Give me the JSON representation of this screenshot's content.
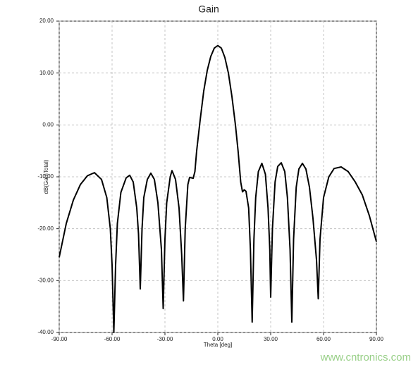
{
  "chart_data": {
    "type": "line",
    "title": "Gain",
    "x_label": "Theta [deg]",
    "y_label": "dB(GainTotal)",
    "annotation": "www.cntronics.com",
    "color": "#000000",
    "grid": true,
    "xlim": [
      -90,
      90
    ],
    "ylim": [
      -40,
      20
    ],
    "xticks": [
      {
        "value": -90,
        "label": "-90.00"
      },
      {
        "value": -60,
        "label": "-60.00"
      },
      {
        "value": -30,
        "label": "-30.00"
      },
      {
        "value": 0,
        "label": "0.00"
      },
      {
        "value": 30,
        "label": "30.00"
      },
      {
        "value": 60,
        "label": "60.00"
      },
      {
        "value": 90,
        "label": "90.00"
      }
    ],
    "yticks": [
      {
        "value": -40,
        "label": "-40.00"
      },
      {
        "value": -30,
        "label": "-30.00"
      },
      {
        "value": -20,
        "label": "-20.00"
      },
      {
        "value": -10,
        "label": "-10.00"
      },
      {
        "value": 0,
        "label": "0.00"
      },
      {
        "value": 10,
        "label": "10.00"
      },
      {
        "value": 20,
        "label": "20.00"
      }
    ],
    "x": [
      -90,
      -86,
      -82,
      -78,
      -74,
      -70,
      -66,
      -63,
      -61,
      -60,
      -59,
      -58,
      -57,
      -55,
      -52,
      -50,
      -48,
      -46,
      -45,
      -44,
      -43,
      -42,
      -40,
      -38,
      -36,
      -34,
      -32,
      -31,
      -30,
      -29,
      -27,
      -26,
      -24,
      -22,
      -20.5,
      -19.5,
      -18.5,
      -17,
      -16,
      -14,
      -13,
      -12,
      -10,
      -8,
      -6,
      -4,
      -2,
      0,
      2,
      4,
      6,
      8,
      10,
      11.5,
      13,
      14,
      15,
      16,
      17.5,
      18.5,
      19.5,
      20.5,
      21.5,
      23,
      25,
      27,
      28.5,
      29.5,
      30,
      31,
      32.5,
      34,
      36,
      38,
      39.5,
      41,
      42,
      43,
      44.5,
      46,
      48,
      50,
      52,
      54,
      56,
      57,
      58,
      60,
      63,
      66,
      70,
      74,
      78,
      82,
      86,
      90
    ],
    "values": [
      -25.5,
      -19,
      -14.5,
      -11.5,
      -9.8,
      -9.2,
      -10.5,
      -14,
      -20,
      -27,
      -40,
      -27,
      -19,
      -13,
      -10.2,
      -9.7,
      -11,
      -16,
      -21,
      -31.6,
      -20,
      -14,
      -10.5,
      -9.3,
      -10.5,
      -15,
      -24,
      -35.4,
      -22,
      -15,
      -10,
      -8.8,
      -10.5,
      -16,
      -25,
      -33.9,
      -20,
      -11.5,
      -10.1,
      -10.3,
      -9,
      -5,
      1,
      6.5,
      10.5,
      13.2,
      14.8,
      15.3,
      14.8,
      13,
      10,
      5.5,
      0,
      -5,
      -11,
      -12.9,
      -12.5,
      -12.8,
      -16,
      -24,
      -38,
      -22,
      -14,
      -9,
      -7.4,
      -9.5,
      -16,
      -24,
      -33.2,
      -20,
      -11,
      -8,
      -7.3,
      -9,
      -14,
      -24,
      -38,
      -22,
      -12,
      -8.5,
      -7.4,
      -8.5,
      -12,
      -18,
      -26,
      -33.5,
      -22,
      -14,
      -10,
      -8.4,
      -8.1,
      -9,
      -11,
      -13.5,
      -17.5,
      -22.5
    ]
  }
}
